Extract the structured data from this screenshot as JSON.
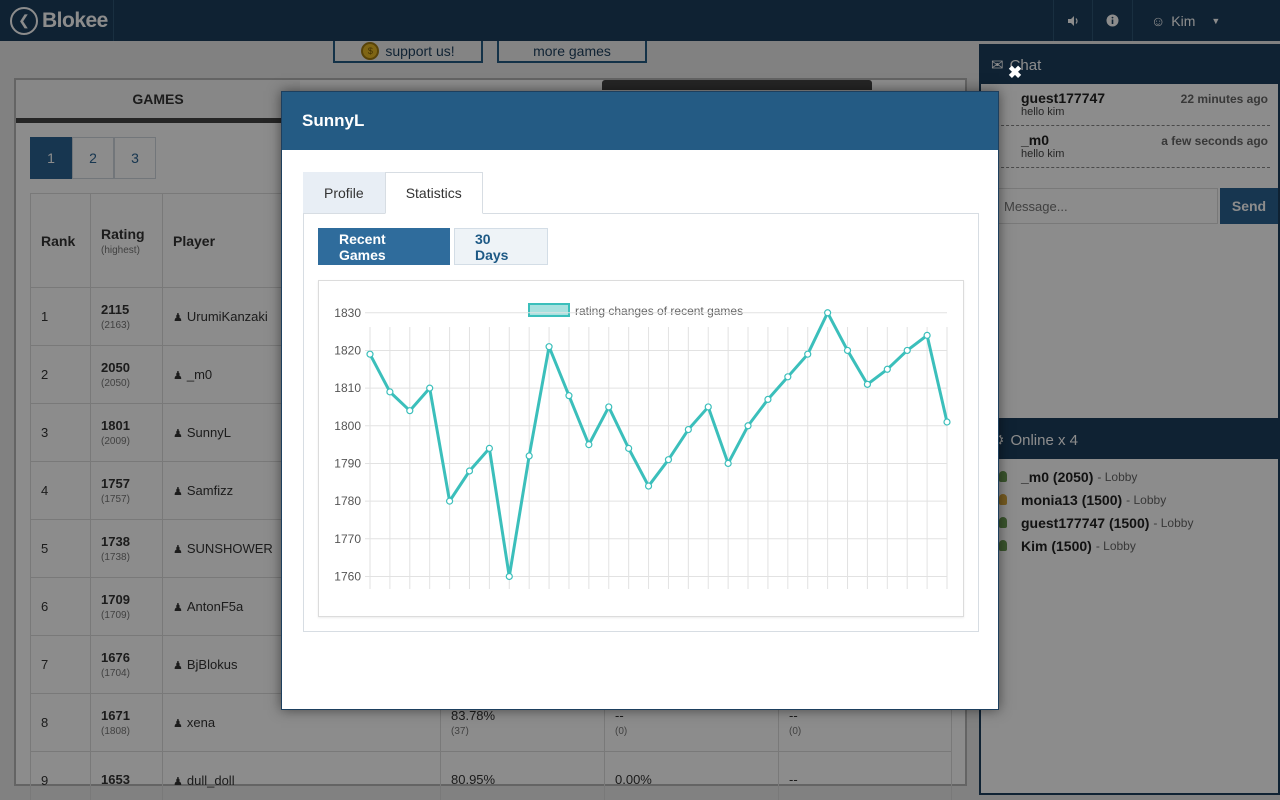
{
  "app": {
    "logo_text": "Blokee"
  },
  "topbar": {
    "sound_icon": "volume-icon",
    "info_icon": "info-icon",
    "user_name": "Kim"
  },
  "links": {
    "support": "support us!",
    "more_games": "more games"
  },
  "games": {
    "tab_label": "GAMES",
    "pages": [
      "1",
      "2",
      "3"
    ],
    "columns": {
      "rank": "Rank",
      "rating": "Rating",
      "rating_sub": "(highest)",
      "player": "Player"
    },
    "rows": [
      {
        "rank": "1",
        "rating": "2115",
        "highest": "(2163)",
        "player": "UrumiKanzaki"
      },
      {
        "rank": "2",
        "rating": "2050",
        "highest": "(2050)",
        "player": "_m0"
      },
      {
        "rank": "3",
        "rating": "1801",
        "highest": "(2009)",
        "player": "SunnyL"
      },
      {
        "rank": "4",
        "rating": "1757",
        "highest": "(1757)",
        "player": "Samfizz"
      },
      {
        "rank": "5",
        "rating": "1738",
        "highest": "(1738)",
        "player": "SUNSHOWER"
      },
      {
        "rank": "6",
        "rating": "1709",
        "highest": "(1709)",
        "player": "AntonF5a"
      },
      {
        "rank": "7",
        "rating": "1676",
        "highest": "(1704)",
        "player": "BjBlokus"
      },
      {
        "rank": "8",
        "rating": "1671",
        "highest": "(1808)",
        "player": "xena",
        "c1": "83.78%",
        "c1sub": "(37)",
        "c2": "--",
        "c2sub": "(0)",
        "c3": "--",
        "c3sub": "(0)"
      },
      {
        "rank": "9",
        "rating": "1653",
        "highest": "",
        "player": "dull_doll",
        "c1": "80.95%",
        "c2": "0.00%",
        "c3": "--"
      }
    ]
  },
  "chat": {
    "title": "Chat",
    "messages": [
      {
        "name": "guest177747",
        "time": "22 minutes ago",
        "text": "hello kim"
      },
      {
        "name": "_m0",
        "time": "a few seconds ago",
        "text": "hello kim"
      }
    ],
    "input_placeholder": "Message...",
    "send_label": "Send"
  },
  "online": {
    "title": "Online x 4",
    "users": [
      {
        "name": "_m0 (2050)",
        "location": "- Lobby",
        "color": "#6a9a53"
      },
      {
        "name": "monia13 (1500)",
        "location": "- Lobby",
        "color": "#d7a63d"
      },
      {
        "name": "guest177747 (1500)",
        "location": "- Lobby",
        "color": "#6a9a53"
      },
      {
        "name": "Kim (1500)",
        "location": "- Lobby",
        "color": "#6a9a53"
      }
    ]
  },
  "modal": {
    "title": "SunnyL",
    "tabs": [
      "Profile",
      "Statistics"
    ],
    "active_tab": "Statistics",
    "subtabs": [
      "Recent Games",
      "30 Days"
    ],
    "active_subtab": "Recent Games"
  },
  "chart_data": {
    "type": "line",
    "legend": "rating changes of recent games",
    "color": "#3bbfbb",
    "fill": "#a7e1df",
    "ylim": [
      1758,
      1831
    ],
    "yticks": [
      1830,
      1820,
      1810,
      1800,
      1790,
      1780,
      1770,
      1760
    ],
    "grid": true,
    "values": [
      1819,
      1809,
      1804,
      1810,
      1780,
      1788,
      1794,
      1760,
      1792,
      1821,
      1808,
      1795,
      1805,
      1794,
      1784,
      1791,
      1799,
      1805,
      1790,
      1800,
      1807,
      1813,
      1819,
      1830,
      1820,
      1811,
      1815,
      1820,
      1824,
      1801
    ]
  }
}
